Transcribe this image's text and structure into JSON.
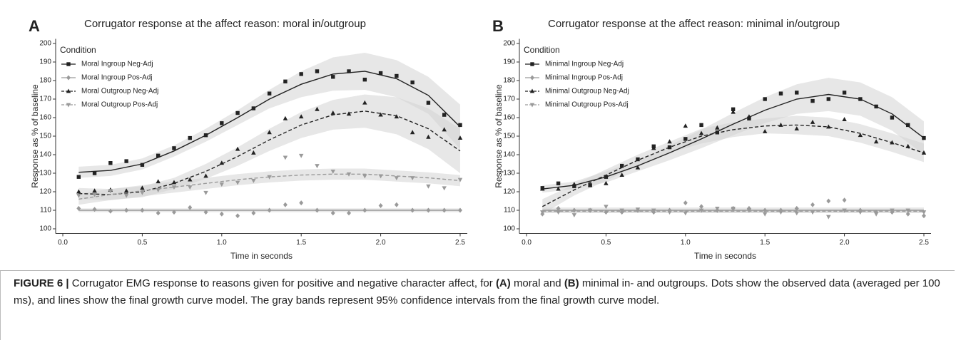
{
  "chart_data": [
    {
      "type": "scatter",
      "panel": "A",
      "title": "Corrugator response at the affect reason: moral in/outgroup",
      "x_label": "Time in seconds",
      "y_label": "Response as % of baseline",
      "legend_title": "Condition",
      "legend": "top-left",
      "xlim": [
        -0.045,
        2.545
      ],
      "ylim": [
        97.5,
        202.5
      ],
      "xticks": [
        {
          "value": 0,
          "label": "0.0"
        },
        0.5,
        {
          "value": 1,
          "label": "1.0"
        },
        1.5,
        {
          "value": 2,
          "label": "2.0"
        },
        2.5
      ],
      "yticks": [
        100,
        110,
        120,
        130,
        140,
        150,
        160,
        170,
        180,
        190,
        200
      ],
      "x": [
        0.1,
        0.2,
        0.3,
        0.4,
        0.5,
        0.6,
        0.7,
        0.8,
        0.9,
        1.0,
        1.1,
        1.2,
        1.3,
        1.4,
        1.5,
        1.6,
        1.7,
        1.8,
        1.9,
        2.0,
        2.1,
        2.2,
        2.3,
        2.4,
        2.5
      ],
      "fit_x": [
        0.1,
        0.3,
        0.5,
        0.7,
        0.9,
        1.1,
        1.3,
        1.5,
        1.7,
        1.9,
        2.1,
        2.3,
        2.5
      ],
      "band_color": "#d4d4d4",
      "series": [
        {
          "name": "Moral Ingroup Neg-Adj",
          "color": "#222222",
          "marker": "square",
          "dash": false,
          "values": [
            128,
            130,
            135.5,
            136.5,
            134.5,
            139.5,
            143.5,
            149,
            150.5,
            157,
            162.5,
            165,
            173,
            179.5,
            183.5,
            185,
            182,
            185,
            180.5,
            184,
            182.5,
            179,
            168,
            161.5,
            156
          ],
          "fit": [
            130.5,
            131.5,
            135,
            142,
            150.5,
            160,
            170,
            178,
            183.5,
            185,
            181,
            172,
            155
          ],
          "ci": [
            3,
            3,
            3,
            3,
            3.5,
            4,
            5,
            7,
            9,
            10,
            10,
            10,
            12
          ]
        },
        {
          "name": "Moral Ingroup Pos-Adj",
          "color": "#9a9a9a",
          "marker": "diamond",
          "dash": false,
          "values": [
            111,
            110.5,
            109.5,
            110,
            110,
            108.5,
            109,
            111.5,
            109,
            108,
            107,
            108.5,
            110,
            113,
            114,
            110,
            108.5,
            108.5,
            110,
            112.5,
            113,
            110,
            110,
            110,
            110
          ],
          "fit": [
            110,
            110,
            110,
            110,
            110,
            110,
            110,
            110,
            110,
            110,
            110,
            110,
            110
          ],
          "ci": [
            1,
            1,
            1,
            1,
            1,
            1,
            1,
            1,
            1,
            1,
            1,
            1,
            1
          ]
        },
        {
          "name": "Moral Outgroup Neg-Adj",
          "color": "#222222",
          "marker": "triangle-up",
          "dash": true,
          "values": [
            120,
            120.5,
            121,
            120.5,
            122,
            125.5,
            125,
            126.5,
            128.5,
            135.5,
            143,
            141,
            152,
            159.5,
            160.5,
            164.5,
            162.5,
            162,
            168,
            161.5,
            160.5,
            152,
            149.5,
            153.5,
            149
          ],
          "fit": [
            119,
            118.5,
            120,
            124.5,
            131,
            139,
            148,
            156,
            161.5,
            163.5,
            161,
            154,
            142
          ],
          "ci": [
            3,
            3,
            3,
            3,
            4,
            5,
            6,
            7,
            8,
            9,
            10,
            11,
            12
          ]
        },
        {
          "name": "Moral Outgroup Pos-Adj",
          "color": "#9a9a9a",
          "marker": "triangle-down",
          "dash": true,
          "values": [
            118,
            118.5,
            120.5,
            118,
            119.5,
            121,
            122.5,
            122.5,
            119.5,
            124,
            125,
            126,
            128,
            138.5,
            139.5,
            134,
            131,
            129.5,
            128.5,
            128.5,
            127.5,
            127.5,
            123,
            122,
            126.5
          ],
          "fit": [
            116,
            118.5,
            120.5,
            122.5,
            124.5,
            126.5,
            128,
            129,
            129.5,
            129.5,
            128.5,
            127.5,
            126
          ],
          "ci": [
            3,
            3,
            3,
            3,
            3,
            3,
            3,
            3,
            3,
            3,
            3,
            3,
            3
          ]
        }
      ]
    },
    {
      "type": "scatter",
      "panel": "B",
      "title": "Corrugator response at the affect reason: minimal in/outgroup",
      "x_label": "Time in seconds",
      "y_label": "Response as % of baseline",
      "legend_title": "Condition",
      "legend": "top-left",
      "xlim": [
        -0.045,
        2.545
      ],
      "ylim": [
        97.5,
        202.5
      ],
      "xticks": [
        {
          "value": 0,
          "label": "0.0"
        },
        0.5,
        {
          "value": 1,
          "label": "1.0"
        },
        1.5,
        {
          "value": 2,
          "label": "2.0"
        },
        2.5
      ],
      "yticks": [
        100,
        110,
        120,
        130,
        140,
        150,
        160,
        170,
        180,
        190,
        200
      ],
      "x": [
        0.1,
        0.2,
        0.3,
        0.4,
        0.5,
        0.6,
        0.7,
        0.8,
        0.9,
        1.0,
        1.1,
        1.2,
        1.3,
        1.4,
        1.5,
        1.6,
        1.7,
        1.8,
        1.9,
        2.0,
        2.1,
        2.2,
        2.3,
        2.4,
        2.5
      ],
      "fit_x": [
        0.1,
        0.3,
        0.5,
        0.7,
        0.9,
        1.1,
        1.3,
        1.5,
        1.7,
        1.9,
        2.1,
        2.3,
        2.5
      ],
      "band_color": "#d4d4d4",
      "series": [
        {
          "name": "Minimal Ingroup Neg-Adj",
          "color": "#222222",
          "marker": "square",
          "dash": false,
          "values": [
            122,
            124.5,
            123,
            123.5,
            128,
            134,
            137.5,
            144.5,
            144,
            148.5,
            156,
            152,
            164.5,
            159.5,
            170,
            173,
            173.5,
            169,
            170,
            173.5,
            170,
            166,
            160,
            156,
            149
          ],
          "fit": [
            121.5,
            123.5,
            128,
            134,
            141,
            148.5,
            156.5,
            164,
            170,
            172.5,
            170,
            162,
            149
          ],
          "ci": [
            2,
            2,
            3,
            3,
            4,
            5,
            6,
            7,
            8,
            9,
            9,
            9,
            9
          ]
        },
        {
          "name": "Minimal Ingroup Pos-Adj",
          "color": "#9a9a9a",
          "marker": "diamond",
          "dash": false,
          "values": [
            108,
            111,
            110,
            110,
            109,
            109,
            110,
            109,
            110,
            114,
            112,
            110,
            111,
            111,
            110,
            110,
            111,
            113,
            115,
            115.5,
            110,
            109,
            109,
            108,
            107
          ],
          "fit": [
            110,
            110,
            110,
            110,
            110,
            110,
            110,
            110,
            110,
            110,
            110,
            110,
            110
          ],
          "ci": [
            1.5,
            1.5,
            1.5,
            1.5,
            1.5,
            1.5,
            1.5,
            1.5,
            1.5,
            1.5,
            1.5,
            1.5,
            1.5
          ]
        },
        {
          "name": "Minimal Outgroup Neg-Adj",
          "color": "#222222",
          "marker": "triangle-up",
          "dash": true,
          "values": [
            121.5,
            121.5,
            124,
            123.5,
            124.5,
            129,
            133,
            143.5,
            147,
            155.5,
            151.5,
            154.5,
            163,
            160.5,
            152.5,
            156,
            154,
            157.5,
            155,
            159,
            150.5,
            147,
            146.5,
            144.5,
            141
          ],
          "fit": [
            112,
            121,
            129,
            137,
            144,
            150,
            153.5,
            155.5,
            156,
            155,
            151.5,
            146.5,
            141
          ],
          "ci": [
            4,
            3,
            3,
            3,
            3,
            4,
            4,
            4,
            5,
            5,
            5,
            5,
            5
          ]
        },
        {
          "name": "Minimal Outgroup Pos-Adj",
          "color": "#9a9a9a",
          "marker": "triangle-down",
          "dash": true,
          "values": [
            109,
            109,
            107.5,
            110,
            112,
            110,
            110.5,
            110,
            109,
            108.5,
            110,
            111,
            111,
            110,
            108,
            109,
            108.5,
            109,
            106.5,
            110,
            109,
            108,
            110,
            110,
            109
          ],
          "fit": [
            109.5,
            109.5,
            109.5,
            109.5,
            109.5,
            109.5,
            109.5,
            109.5,
            109.5,
            109.5,
            109.5,
            109.5,
            109.5
          ],
          "ci": [
            1,
            1,
            1,
            1,
            1,
            1,
            1,
            1,
            1,
            1,
            1,
            1,
            1
          ]
        }
      ]
    }
  ],
  "caption": {
    "label": "FIGURE 6 |",
    "text1": "Corrugator EMG response to reasons given for positive and negative character affect, for",
    "bold1": "(A)",
    "text2": "moral and",
    "bold2": "(B)",
    "text3": "minimal in- and outgroups. Dots show the observed data (averaged per 100 ms), and lines show the final growth curve model. The gray bands represent 95% confidence intervals from the final growth curve model."
  }
}
